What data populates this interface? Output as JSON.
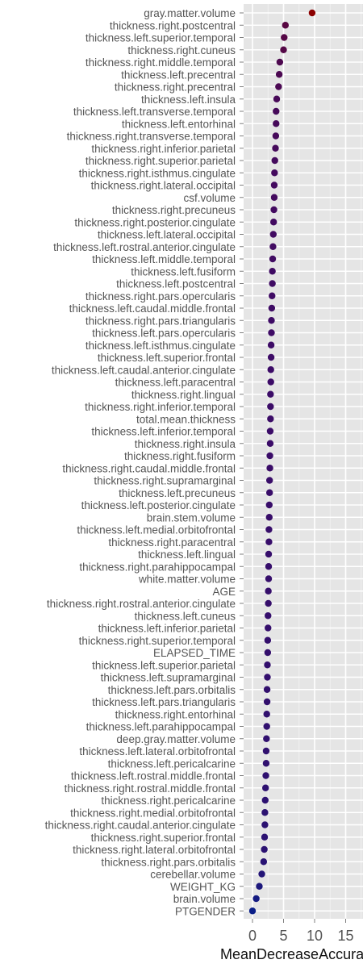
{
  "chart_data": {
    "type": "scatter",
    "xlabel": "MeanDecreaseAccuracy",
    "xlim": [
      -1,
      17
    ],
    "xticks": [
      0,
      5,
      10,
      15
    ],
    "grid": true,
    "color_low": "#0b1f88",
    "color_mid": "#3d0b66",
    "color_high": "#8b0000",
    "categories": [
      "gray.matter.volume",
      "thickness.right.postcentral",
      "thickness.left.superior.temporal",
      "thickness.right.cuneus",
      "thickness.right.middle.temporal",
      "thickness.left.precentral",
      "thickness.right.precentral",
      "thickness.left.insula",
      "thickness.left.transverse.temporal",
      "thickness.left.entorhinal",
      "thickness.right.transverse.temporal",
      "thickness.right.inferior.parietal",
      "thickness.right.superior.parietal",
      "thickness.right.isthmus.cingulate",
      "thickness.right.lateral.occipital",
      "csf.volume",
      "thickness.right.precuneus",
      "thickness.right.posterior.cingulate",
      "thickness.left.lateral.occipital",
      "thickness.left.rostral.anterior.cingulate",
      "thickness.left.middle.temporal",
      "thickness.left.fusiform",
      "thickness.left.postcentral",
      "thickness.right.pars.opercularis",
      "thickness.left.caudal.middle.frontal",
      "thickness.right.pars.triangularis",
      "thickness.left.pars.opercularis",
      "thickness.left.isthmus.cingulate",
      "thickness.left.superior.frontal",
      "thickness.left.caudal.anterior.cingulate",
      "thickness.left.paracentral",
      "thickness.right.lingual",
      "thickness.right.inferior.temporal",
      "total.mean.thickness",
      "thickness.left.inferior.temporal",
      "thickness.right.insula",
      "thickness.right.fusiform",
      "thickness.right.caudal.middle.frontal",
      "thickness.right.supramarginal",
      "thickness.left.precuneus",
      "thickness.left.posterior.cingulate",
      "brain.stem.volume",
      "thickness.left.medial.orbitofrontal",
      "thickness.right.paracentral",
      "thickness.left.lingual",
      "thickness.right.parahippocampal",
      "white.matter.volume",
      "AGE",
      "thickness.right.rostral.anterior.cingulate",
      "thickness.left.cuneus",
      "thickness.left.inferior.parietal",
      "thickness.right.superior.temporal",
      "ELAPSED_TIME",
      "thickness.left.superior.parietal",
      "thickness.left.supramarginal",
      "thickness.left.pars.orbitalis",
      "thickness.left.pars.triangularis",
      "thickness.right.entorhinal",
      "thickness.left.parahippocampal",
      "deep.gray.matter.volume",
      "thickness.left.lateral.orbitofrontal",
      "thickness.left.pericalcarine",
      "thickness.left.rostral.middle.frontal",
      "thickness.right.rostral.middle.frontal",
      "thickness.right.pericalcarine",
      "thickness.right.medial.orbitofrontal",
      "thickness.right.caudal.anterior.cingulate",
      "thickness.right.superior.frontal",
      "thickness.right.lateral.orbitofrontal",
      "thickness.right.pars.orbitalis",
      "cerebellar.volume",
      "WEIGHT_KG",
      "brain.volume",
      "PTGENDER"
    ],
    "values": [
      9.6,
      5.3,
      5.1,
      5.0,
      4.4,
      4.3,
      4.2,
      3.9,
      3.8,
      3.8,
      3.75,
      3.7,
      3.6,
      3.55,
      3.5,
      3.5,
      3.45,
      3.4,
      3.35,
      3.3,
      3.25,
      3.2,
      3.2,
      3.15,
      3.1,
      3.05,
      3.05,
      3.0,
      3.0,
      2.95,
      2.95,
      2.9,
      2.9,
      2.9,
      2.85,
      2.85,
      2.8,
      2.8,
      2.75,
      2.75,
      2.7,
      2.7,
      2.65,
      2.65,
      2.6,
      2.6,
      2.6,
      2.55,
      2.55,
      2.5,
      2.5,
      2.45,
      2.45,
      2.4,
      2.4,
      2.35,
      2.35,
      2.3,
      2.3,
      2.25,
      2.2,
      2.2,
      2.15,
      2.1,
      2.05,
      2.0,
      2.0,
      1.95,
      1.9,
      1.8,
      1.5,
      1.1,
      0.6,
      0.0
    ]
  }
}
